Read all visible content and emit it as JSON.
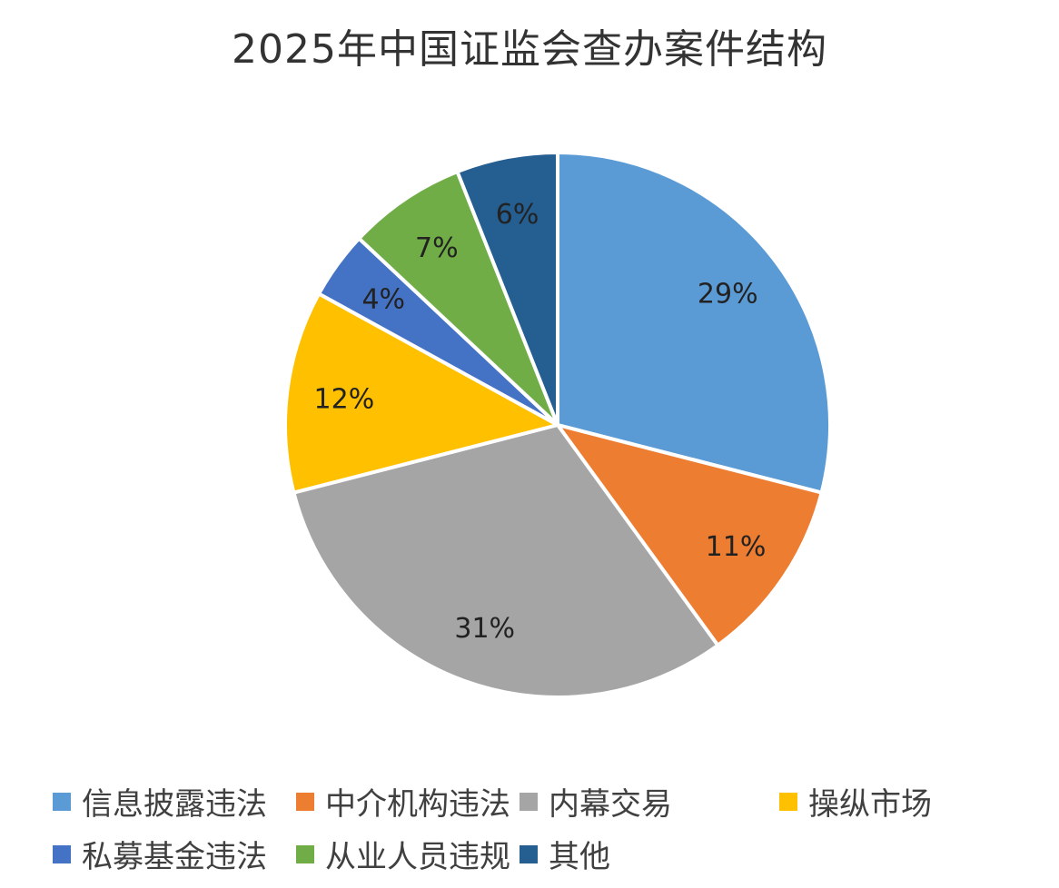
{
  "chart_data": {
    "type": "pie",
    "title": "2025年中国证监会查办案件结构",
    "start_angle": "top",
    "direction": "clockwise",
    "slices": [
      {
        "label": "信息披露违法",
        "value": 29,
        "data_label": "29%",
        "color": "#5B9BD5"
      },
      {
        "label": "中介机构违法",
        "value": 11,
        "data_label": "11%",
        "color": "#ED7D31"
      },
      {
        "label": "内幕交易",
        "value": 31,
        "data_label": "31%",
        "color": "#A5A5A5"
      },
      {
        "label": "操纵市场",
        "value": 12,
        "data_label": "12%",
        "color": "#FFC000"
      },
      {
        "label": "私募基金违法",
        "value": 4,
        "data_label": "4%",
        "color": "#4472C4"
      },
      {
        "label": "从业人员违规",
        "value": 7,
        "data_label": "7%",
        "color": "#70AD47"
      },
      {
        "label": "其他",
        "value": 6,
        "data_label": "6%",
        "color": "#255E91"
      }
    ],
    "legend_placement": "bottom"
  }
}
